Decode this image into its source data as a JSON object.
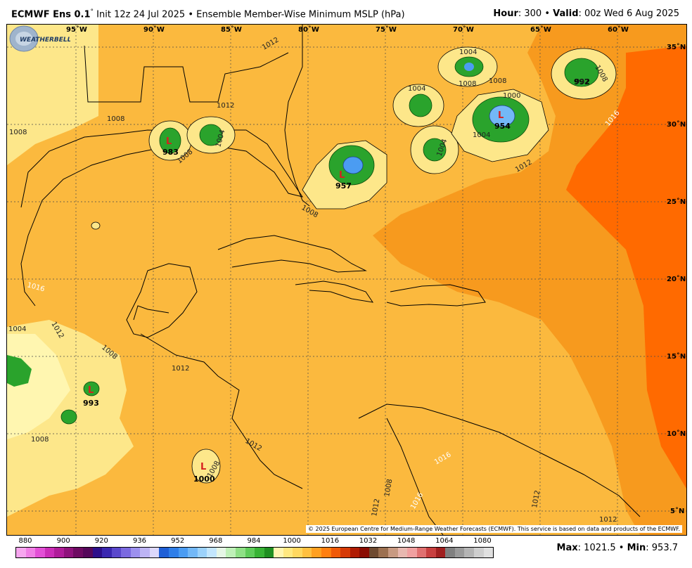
{
  "header": {
    "model": "ECMWF Ens 0.1",
    "deg": "°",
    "init": "Init 12z 24 Jul 2025",
    "bullet": "•",
    "field": "Ensemble Member-Wise Minimum MSLP (hPa)",
    "hour_label": "Hour",
    "hour_value": ": 300",
    "valid_label": "Valid",
    "valid_value": ": 00z Wed 6 Aug 2025"
  },
  "map": {
    "lon_labels": [
      "95˚W",
      "90˚W",
      "85˚W",
      "80˚W",
      "75˚W",
      "70˚W",
      "65˚W",
      "60˚W"
    ],
    "lat_labels": [
      "35˚N",
      "30˚N",
      "25˚N",
      "20˚N",
      "15˚N",
      "10˚N",
      "5˚N"
    ],
    "contour_labels": [
      "1012",
      "1008",
      "1004",
      "1016",
      "1000",
      "992"
    ],
    "low_values": [
      "983",
      "957",
      "954",
      "993",
      "1000",
      "992"
    ],
    "low_marker": "L",
    "credit": "© 2025 European Centre for Medium-Range Weather Forecasts (ECMWF). This service is based on data and products of the ECMWF.",
    "logo_text": "WEATHERBELL"
  },
  "legend": {
    "ticks": [
      "880",
      "900",
      "920",
      "936",
      "952",
      "968",
      "984",
      "1000",
      "1016",
      "1032",
      "1048",
      "1064",
      "1080"
    ],
    "colors": [
      "#f7a6ef",
      "#f07ee5",
      "#e34fd6",
      "#cc2db8",
      "#b01c9a",
      "#8f127c",
      "#6e0b62",
      "#55085a",
      "#2d0f8a",
      "#3a27b0",
      "#5a48cc",
      "#7b6ae0",
      "#9c90ee",
      "#bdb4f5",
      "#dcd8fb",
      "#1f5fd6",
      "#2f7ee8",
      "#4b9cf2",
      "#73b8f7",
      "#9cd2fb",
      "#c3e6fd",
      "#e6f6e6",
      "#bff0b8",
      "#8fe086",
      "#5fcc5a",
      "#38b335",
      "#1f8f21",
      "#fff5b0",
      "#ffe880",
      "#ffd860",
      "#ffc040",
      "#ffa020",
      "#ff7f10",
      "#f05a08",
      "#d63a06",
      "#b01c04",
      "#8a0c02",
      "#6e4a30",
      "#9c7050",
      "#c89a82",
      "#e8b8b0",
      "#f0a0a0",
      "#e07070",
      "#c84040",
      "#a02020",
      "#808080",
      "#9a9a9a",
      "#b4b4b4",
      "#cecece",
      "#e0e0e0"
    ]
  },
  "stats": {
    "max_label": "Max",
    "max_value": ": 1021.5",
    "bullet": "•",
    "min_label": "Min",
    "min_value": ": 953.7"
  }
}
